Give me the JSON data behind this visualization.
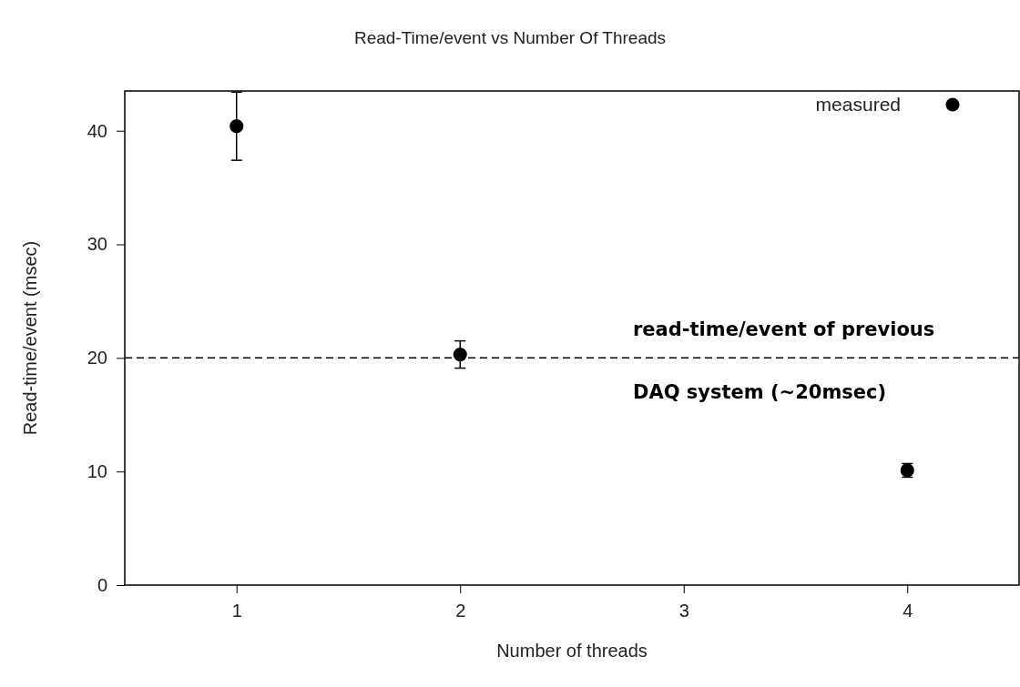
{
  "chart_data": {
    "type": "scatter",
    "title": "Read-Time/event vs Number Of Threads",
    "xlabel": "Number of threads",
    "ylabel": "Read-time/event (msec)",
    "x": [
      1,
      2,
      4
    ],
    "series": [
      {
        "name": "measured",
        "color": "#000000",
        "values": [
          40.4,
          20.3,
          10.1
        ],
        "errors": [
          3,
          1.2,
          0.6
        ]
      }
    ],
    "xlim": [
      0.5,
      4.5
    ],
    "xticks": [
      1,
      2,
      3,
      4
    ],
    "ylim": [
      0,
      43.5
    ],
    "yticks": [
      0,
      10,
      20,
      30,
      40
    ],
    "ref_lines": [
      {
        "axis": "y",
        "value": 20,
        "color": "#000000",
        "line_style": "dashed"
      }
    ],
    "annotations": [
      "read-time/event of previous",
      "DAQ system (~20msec)"
    ],
    "legend": "top right",
    "marker": "circle",
    "grid": false
  }
}
